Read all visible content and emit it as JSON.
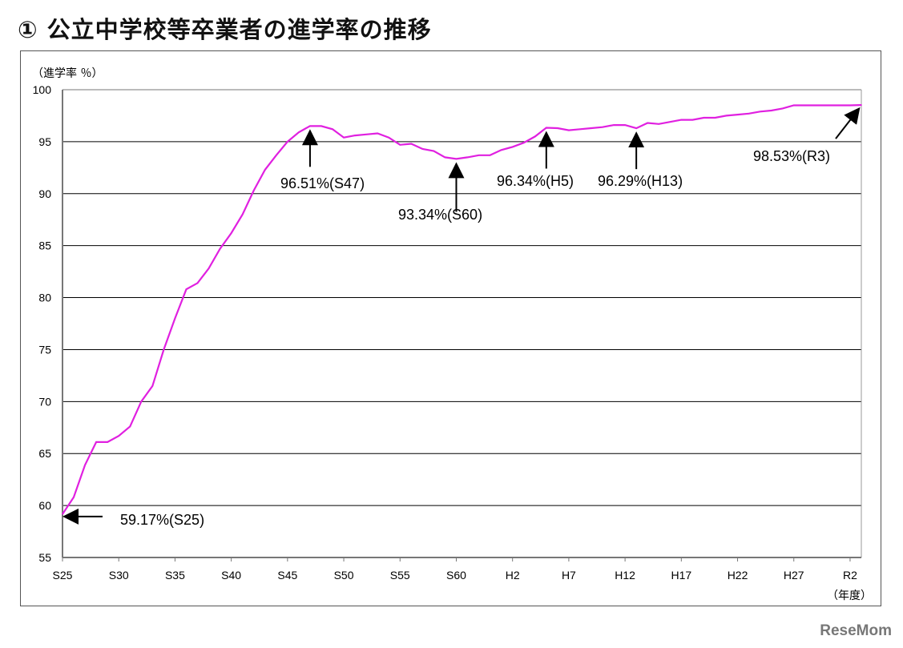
{
  "title": "① 公立中学校等卒業者の進学率の推移",
  "watermark": "ReseMom",
  "chart_data": {
    "type": "line",
    "title": "① 公立中学校等卒業者の進学率の推移",
    "ylabel": "（進学率 ％）",
    "xlabel": "（年度）",
    "ylim": [
      55,
      100
    ],
    "yticks": [
      55,
      60,
      65,
      70,
      75,
      80,
      85,
      90,
      95,
      100
    ],
    "xticks": [
      "S25",
      "S30",
      "S35",
      "S40",
      "S45",
      "S50",
      "S55",
      "S60",
      "H2",
      "H7",
      "H12",
      "H17",
      "H22",
      "H27",
      "R2"
    ],
    "grid": true,
    "line_color": "#e020e0",
    "x": [
      "S25",
      "S26",
      "S27",
      "S28",
      "S29",
      "S30",
      "S31",
      "S32",
      "S33",
      "S34",
      "S35",
      "S36",
      "S37",
      "S38",
      "S39",
      "S40",
      "S41",
      "S42",
      "S43",
      "S44",
      "S45",
      "S46",
      "S47",
      "S48",
      "S49",
      "S50",
      "S51",
      "S52",
      "S53",
      "S54",
      "S55",
      "S56",
      "S57",
      "S58",
      "S59",
      "S60",
      "S61",
      "S62",
      "S63",
      "H1",
      "H2",
      "H3",
      "H4",
      "H5",
      "H6",
      "H7",
      "H8",
      "H9",
      "H10",
      "H11",
      "H12",
      "H13",
      "H14",
      "H15",
      "H16",
      "H17",
      "H18",
      "H19",
      "H20",
      "H21",
      "H22",
      "H23",
      "H24",
      "H25",
      "H26",
      "H27",
      "H28",
      "H29",
      "H30",
      "R1",
      "R2",
      "R3"
    ],
    "values": [
      59.17,
      60.8,
      63.9,
      66.1,
      66.1,
      66.7,
      67.6,
      70.0,
      71.5,
      75.0,
      78.0,
      80.8,
      81.4,
      82.8,
      84.7,
      86.2,
      88.0,
      90.3,
      92.3,
      93.7,
      95.0,
      95.9,
      96.51,
      96.5,
      96.2,
      95.4,
      95.6,
      95.7,
      95.8,
      95.4,
      94.7,
      94.8,
      94.3,
      94.1,
      93.5,
      93.34,
      93.5,
      93.7,
      93.7,
      94.2,
      94.5,
      94.9,
      95.5,
      96.34,
      96.3,
      96.1,
      96.2,
      96.3,
      96.4,
      96.6,
      96.6,
      96.29,
      96.8,
      96.7,
      96.9,
      97.1,
      97.1,
      97.3,
      97.3,
      97.5,
      97.6,
      97.7,
      97.9,
      98.0,
      98.2,
      98.5,
      98.5,
      98.5,
      98.5,
      98.5,
      98.5,
      98.53
    ],
    "annotations": [
      {
        "label": "59.17%(S25)",
        "x": "S25",
        "y": 59.17
      },
      {
        "label": "96.51%(S47)",
        "x": "S47",
        "y": 96.51
      },
      {
        "label": "93.34%(S60)",
        "x": "S60",
        "y": 93.34
      },
      {
        "label": "96.34%(H5)",
        "x": "H5",
        "y": 96.34
      },
      {
        "label": "96.29%(H13)",
        "x": "H13",
        "y": 96.29
      },
      {
        "label": "98.53%(R3)",
        "x": "R3",
        "y": 98.53
      }
    ]
  }
}
